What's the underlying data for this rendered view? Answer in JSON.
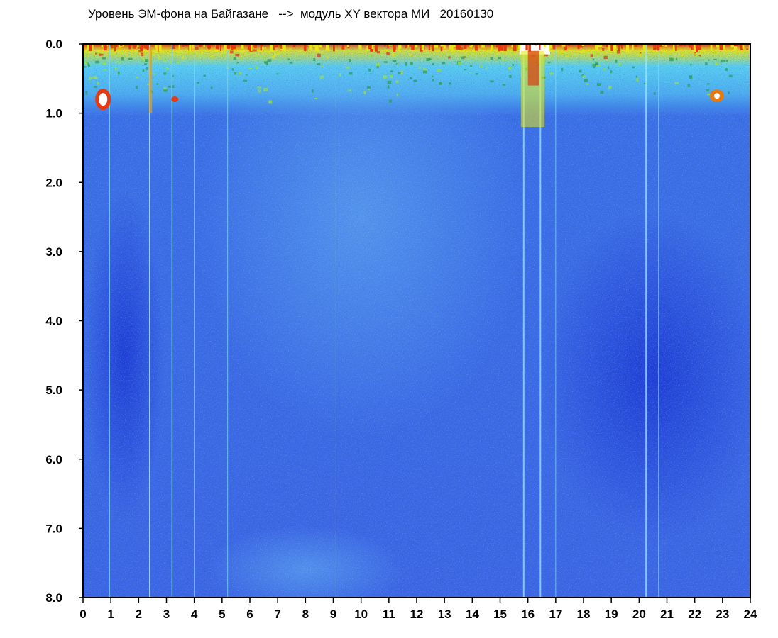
{
  "chart_data": {
    "type": "heatmap",
    "title": "Уровень ЭМ-фона на Байгазане   -->  модуль XY вектора МИ   20160130",
    "xlabel": "",
    "ylabel": "",
    "xlim": [
      0,
      24
    ],
    "ylim": [
      0,
      8
    ],
    "y_inverted": true,
    "grid": false,
    "x_ticks": [
      "0",
      "1",
      "2",
      "3",
      "4",
      "5",
      "6",
      "7",
      "8",
      "9",
      "10",
      "11",
      "12",
      "13",
      "14",
      "15",
      "16",
      "17",
      "18",
      "19",
      "20",
      "21",
      "22",
      "23",
      "24"
    ],
    "y_ticks": [
      "0.0",
      "1.0",
      "2.0",
      "3.0",
      "4.0",
      "5.0",
      "6.0",
      "7.0",
      "8.0"
    ],
    "colormap": [
      "#0a1fd6",
      "#2a4fe6",
      "#4a8af0",
      "#5ad2f0",
      "#2ca04a",
      "#e6e616",
      "#e63b10",
      "#ffffff"
    ],
    "background_color": "#3a5fe0",
    "features": [
      {
        "name": "high-intensity band near top",
        "y_range": [
          0.0,
          0.3
        ],
        "level": 0.9
      },
      {
        "name": "green-cyan band",
        "y_range": [
          0.3,
          1.0
        ],
        "level": 0.6
      },
      {
        "name": "gradient lighter region",
        "x_range": [
          7,
          13
        ],
        "y_range": [
          0.5,
          4.0
        ],
        "level": 0.45
      },
      {
        "name": "darker region",
        "x_range": [
          17,
          24
        ],
        "y_range": [
          3.0,
          6.5
        ],
        "level": 0.15
      },
      {
        "name": "dropout streak",
        "x": 16.2,
        "y_range": [
          0.0,
          1.5
        ],
        "level": 1.0
      },
      {
        "name": "spot",
        "x": 0.7,
        "y": 0.8,
        "level": 1.0
      },
      {
        "name": "spot",
        "x": 22.8,
        "y": 0.75,
        "level": 0.95
      }
    ]
  }
}
